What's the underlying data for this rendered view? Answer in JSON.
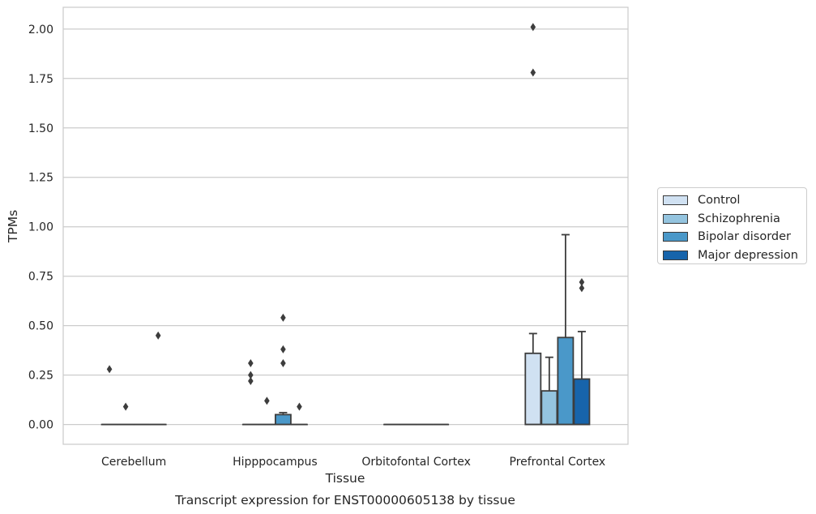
{
  "chart_data": {
    "type": "box",
    "title": "",
    "caption": "Transcript expression for ENST00000605138 by tissue",
    "xlabel": "Tissue",
    "ylabel": "TPMs",
    "ylim": [
      -0.1,
      2.11
    ],
    "yticks": [
      0.0,
      0.25,
      0.5,
      0.75,
      1.0,
      1.25,
      1.5,
      1.75,
      2.0
    ],
    "ytick_labels": [
      "0.00",
      "0.25",
      "0.50",
      "0.75",
      "1.00",
      "1.25",
      "1.50",
      "1.75",
      "2.00"
    ],
    "grid": "horizontal",
    "legend_placement": "right-center, outside plot",
    "categories": [
      "Cerebellum",
      "Hipppocampus",
      "Orbitofontal Cortex",
      "Prefrontal Cortex"
    ],
    "series": [
      {
        "name": "Control",
        "color": "#d0e1f2",
        "boxes": [
          {
            "q1": 0,
            "median": 0,
            "q3": 0,
            "whislo": 0,
            "whishi": 0,
            "fliers": [
              0.28
            ]
          },
          {
            "q1": 0,
            "median": 0,
            "q3": 0,
            "whislo": 0,
            "whishi": 0,
            "fliers": [
              0.31,
              0.25,
              0.22
            ]
          },
          {
            "q1": 0,
            "median": 0,
            "q3": 0,
            "whislo": 0,
            "whishi": 0,
            "fliers": []
          },
          {
            "q1": 0,
            "median": 0,
            "q3": 0.36,
            "whislo": 0,
            "whishi": 0.46,
            "fliers": [
              2.01,
              1.78
            ]
          }
        ]
      },
      {
        "name": "Schizophrenia",
        "color": "#94c4df",
        "boxes": [
          {
            "q1": 0,
            "median": 0,
            "q3": 0,
            "whislo": 0,
            "whishi": 0,
            "fliers": [
              0.09
            ]
          },
          {
            "q1": 0,
            "median": 0,
            "q3": 0,
            "whislo": 0,
            "whishi": 0,
            "fliers": [
              0.12
            ]
          },
          {
            "q1": 0,
            "median": 0,
            "q3": 0,
            "whislo": 0,
            "whishi": 0,
            "fliers": []
          },
          {
            "q1": 0,
            "median": 0,
            "q3": 0.17,
            "whislo": 0,
            "whishi": 0.34,
            "fliers": []
          }
        ]
      },
      {
        "name": "Bipolar disorder",
        "color": "#4a98c9",
        "boxes": [
          {
            "q1": 0,
            "median": 0,
            "q3": 0,
            "whislo": 0,
            "whishi": 0,
            "fliers": []
          },
          {
            "q1": 0,
            "median": 0,
            "q3": 0.05,
            "whislo": 0,
            "whishi": 0.06,
            "fliers": [
              0.54,
              0.38,
              0.31
            ]
          },
          {
            "q1": 0,
            "median": 0,
            "q3": 0,
            "whislo": 0,
            "whishi": 0,
            "fliers": []
          },
          {
            "q1": 0,
            "median": 0,
            "q3": 0.44,
            "whislo": 0,
            "whishi": 0.96,
            "fliers": []
          }
        ]
      },
      {
        "name": "Major depression",
        "color": "#1764ab",
        "boxes": [
          {
            "q1": 0,
            "median": 0,
            "q3": 0,
            "whislo": 0,
            "whishi": 0,
            "fliers": [
              0.45
            ]
          },
          {
            "q1": 0,
            "median": 0,
            "q3": 0,
            "whislo": 0,
            "whishi": 0,
            "fliers": [
              0.09
            ]
          },
          {
            "q1": 0,
            "median": 0,
            "q3": 0,
            "whislo": 0,
            "whishi": 0,
            "fliers": []
          },
          {
            "q1": 0,
            "median": 0,
            "q3": 0.23,
            "whislo": 0,
            "whishi": 0.47,
            "fliers": [
              0.72,
              0.69
            ]
          }
        ]
      }
    ]
  }
}
